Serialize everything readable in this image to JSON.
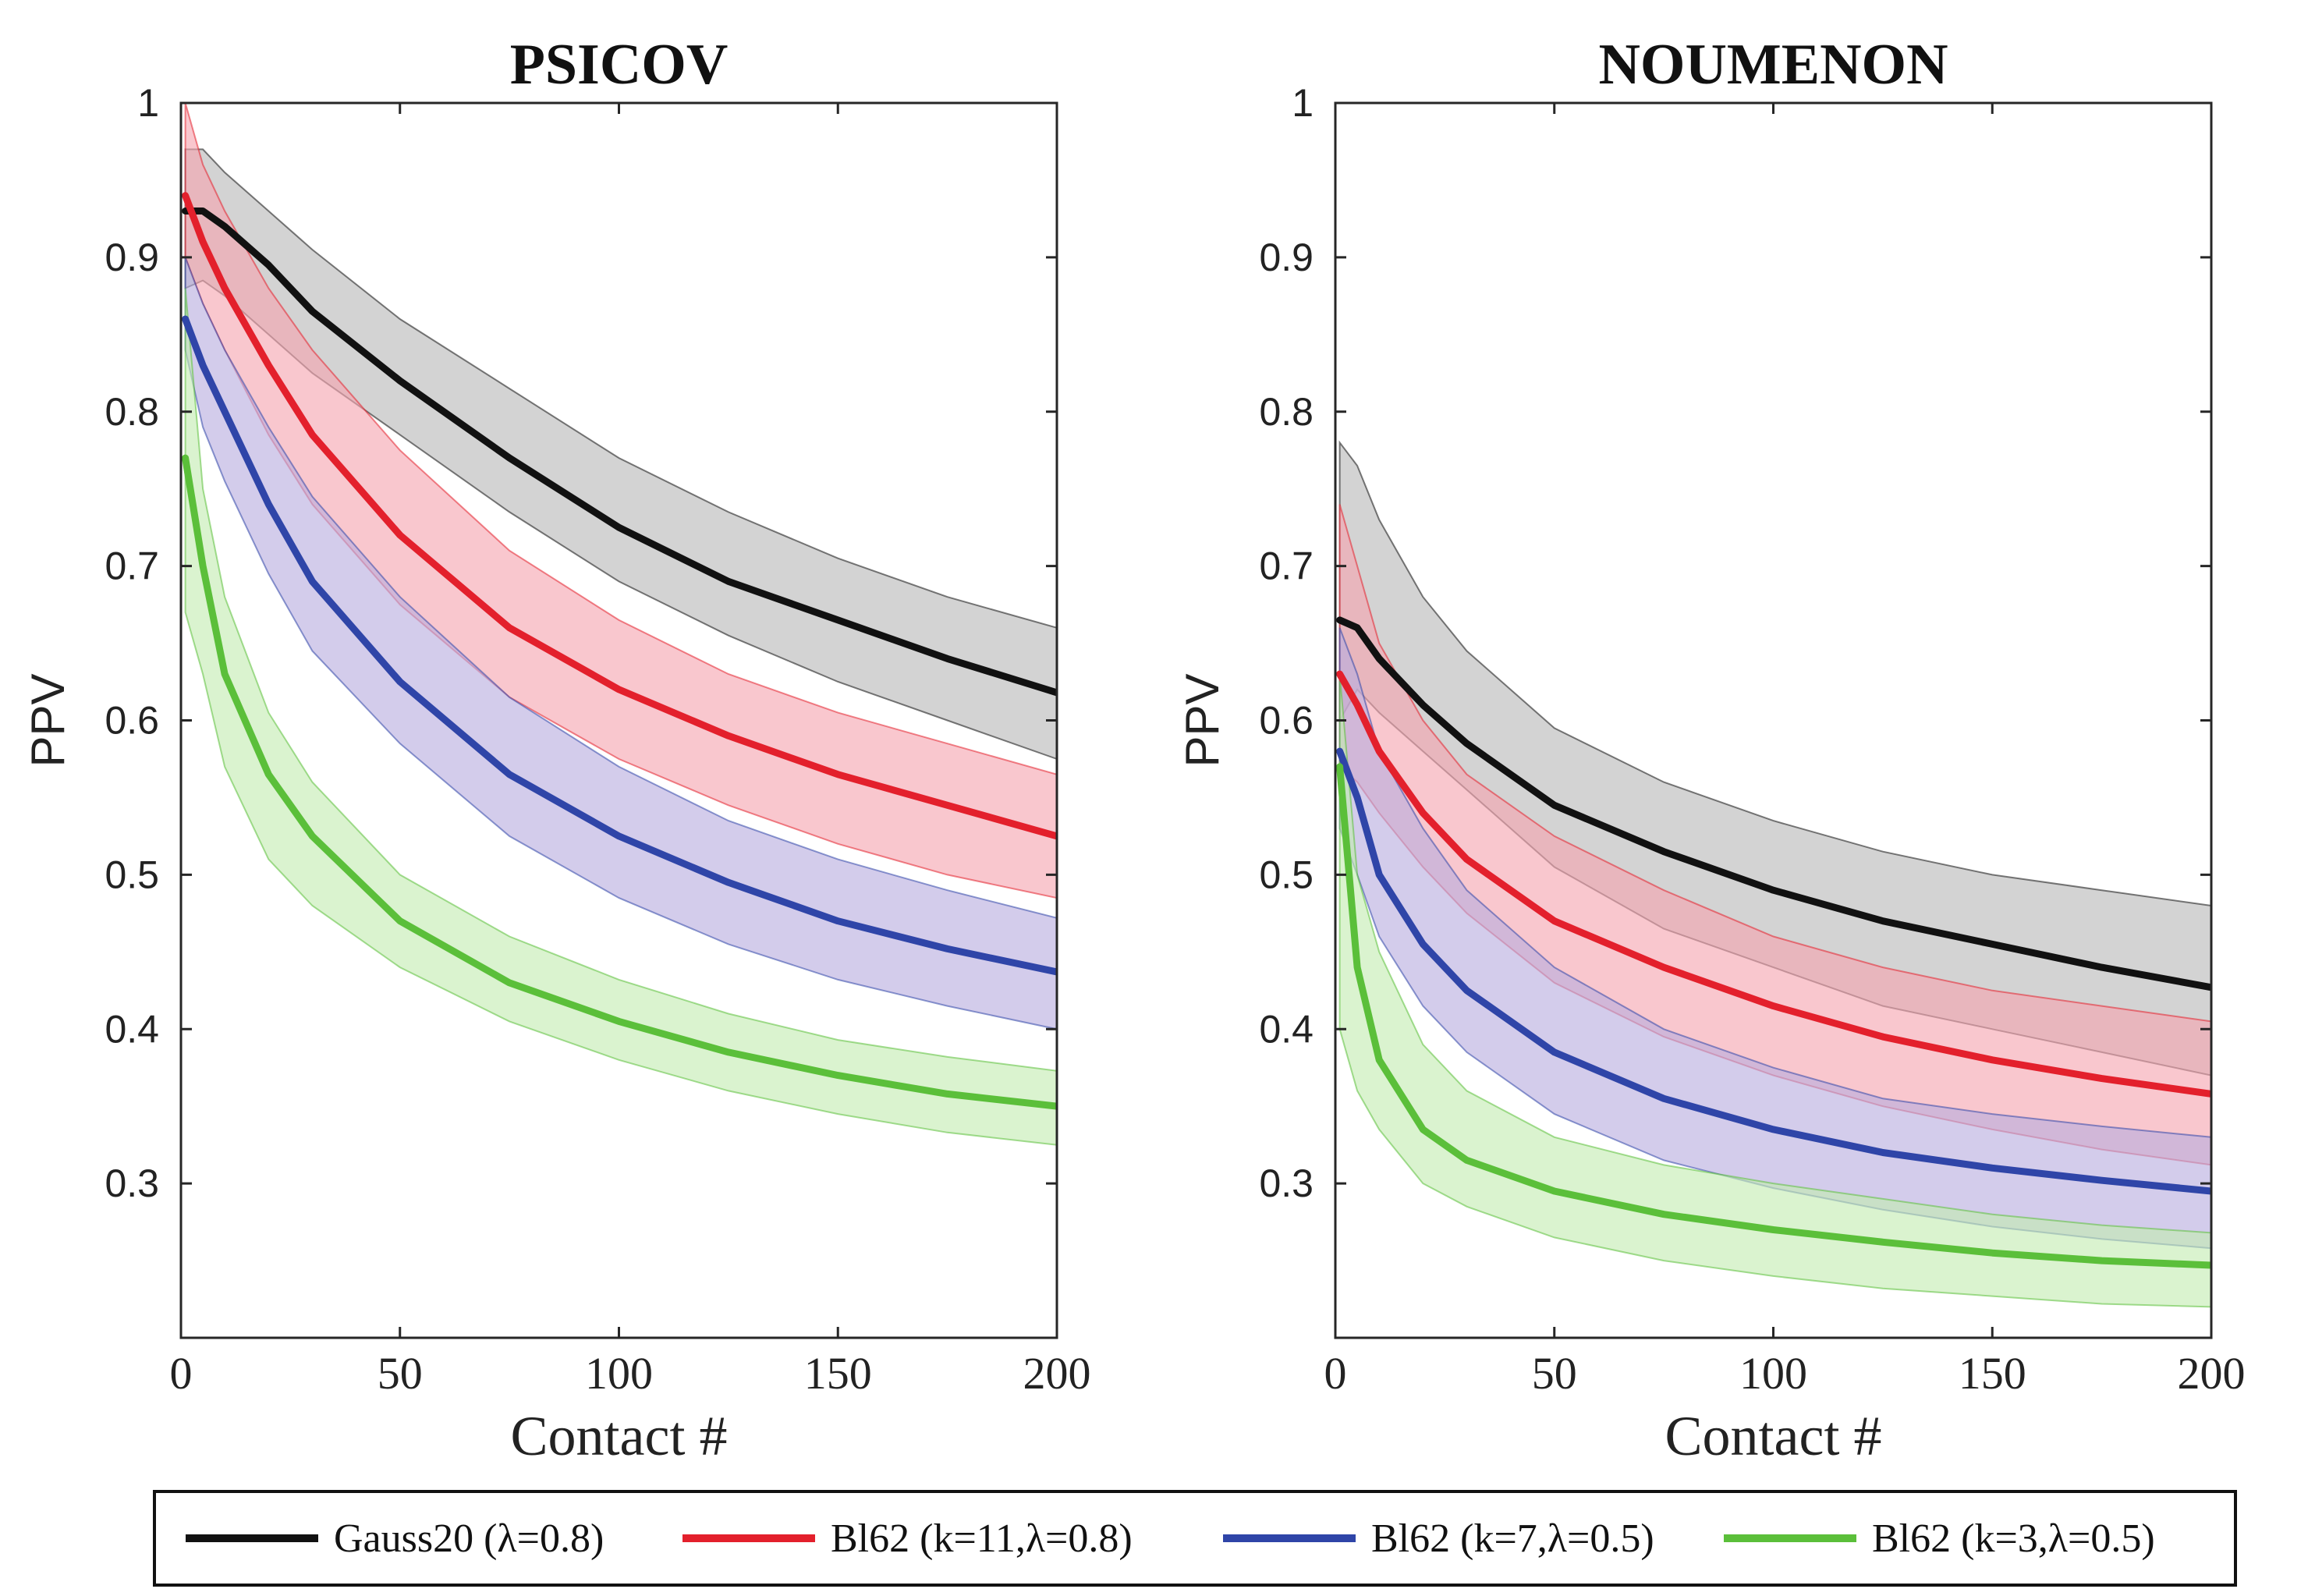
{
  "chart_data": [
    {
      "type": "line",
      "title": "PSICOV",
      "xlabel": "Contact #",
      "ylabel": "PPV",
      "xlim": [
        0,
        200
      ],
      "ylim": [
        0.2,
        1.0
      ],
      "xticks": [
        0,
        50,
        100,
        150,
        200
      ],
      "xtick_labels": [
        "0",
        "50",
        "100",
        "150",
        "200"
      ],
      "yticks": [
        0.3,
        0.4,
        0.5,
        0.6,
        0.7,
        0.8,
        0.9,
        1.0
      ],
      "ytick_labels": [
        "0.3",
        "0.4",
        "0.5",
        "0.6",
        "0.7",
        "0.8",
        "0.9",
        "1"
      ],
      "grid": false,
      "x": [
        1,
        5,
        10,
        20,
        30,
        50,
        75,
        100,
        125,
        150,
        175,
        200
      ],
      "series": [
        {
          "name": "Gauss20 (λ=0.8)",
          "color": "#111111",
          "band_color": "#b8b8b8",
          "values": [
            0.93,
            0.93,
            0.92,
            0.895,
            0.865,
            0.82,
            0.77,
            0.725,
            0.69,
            0.665,
            0.64,
            0.618
          ],
          "upper": [
            0.97,
            0.97,
            0.955,
            0.93,
            0.905,
            0.86,
            0.815,
            0.77,
            0.735,
            0.705,
            0.68,
            0.66
          ],
          "lower": [
            0.88,
            0.885,
            0.875,
            0.85,
            0.825,
            0.785,
            0.735,
            0.69,
            0.655,
            0.625,
            0.6,
            0.575
          ]
        },
        {
          "name": "Bl62 (k=11,λ=0.8)",
          "color": "#e3202c",
          "band_color": "#f6a4b0",
          "values": [
            0.94,
            0.91,
            0.88,
            0.83,
            0.785,
            0.72,
            0.66,
            0.62,
            0.59,
            0.565,
            0.545,
            0.525
          ],
          "upper": [
            1.0,
            0.96,
            0.93,
            0.88,
            0.84,
            0.775,
            0.71,
            0.665,
            0.63,
            0.605,
            0.585,
            0.565
          ],
          "lower": [
            0.9,
            0.87,
            0.84,
            0.785,
            0.74,
            0.675,
            0.615,
            0.575,
            0.545,
            0.52,
            0.5,
            0.485
          ]
        },
        {
          "name": "Bl62 (k=7,λ=0.5)",
          "color": "#2f45a8",
          "band_color": "#b8acdf",
          "values": [
            0.86,
            0.83,
            0.8,
            0.74,
            0.69,
            0.625,
            0.565,
            0.525,
            0.495,
            0.47,
            0.452,
            0.437
          ],
          "upper": [
            0.9,
            0.87,
            0.84,
            0.79,
            0.745,
            0.68,
            0.615,
            0.57,
            0.535,
            0.51,
            0.49,
            0.472
          ],
          "lower": [
            0.84,
            0.79,
            0.755,
            0.695,
            0.645,
            0.585,
            0.525,
            0.485,
            0.455,
            0.432,
            0.415,
            0.4
          ]
        },
        {
          "name": "Bl62 (k=3,λ=0.5)",
          "color": "#5bbf3a",
          "band_color": "#c4ebb2",
          "values": [
            0.77,
            0.7,
            0.63,
            0.565,
            0.525,
            0.47,
            0.43,
            0.405,
            0.385,
            0.37,
            0.358,
            0.35
          ],
          "upper": [
            0.88,
            0.75,
            0.68,
            0.605,
            0.56,
            0.5,
            0.46,
            0.432,
            0.41,
            0.393,
            0.382,
            0.373
          ],
          "lower": [
            0.67,
            0.63,
            0.57,
            0.51,
            0.48,
            0.44,
            0.405,
            0.38,
            0.36,
            0.345,
            0.333,
            0.325
          ]
        }
      ]
    },
    {
      "type": "line",
      "title": "NOUMENON",
      "xlabel": "Contact #",
      "ylabel": "PPV",
      "xlim": [
        0,
        200
      ],
      "ylim": [
        0.2,
        1.0
      ],
      "xticks": [
        0,
        50,
        100,
        150,
        200
      ],
      "xtick_labels": [
        "0",
        "50",
        "100",
        "150",
        "200"
      ],
      "yticks": [
        0.3,
        0.4,
        0.5,
        0.6,
        0.7,
        0.8,
        0.9,
        1.0
      ],
      "ytick_labels": [
        "0.3",
        "0.4",
        "0.5",
        "0.6",
        "0.7",
        "0.8",
        "0.9",
        "1"
      ],
      "grid": false,
      "x": [
        1,
        5,
        10,
        20,
        30,
        50,
        75,
        100,
        125,
        150,
        175,
        200
      ],
      "series": [
        {
          "name": "Gauss20 (λ=0.8)",
          "color": "#111111",
          "band_color": "#b8b8b8",
          "values": [
            0.665,
            0.66,
            0.64,
            0.61,
            0.585,
            0.545,
            0.515,
            0.49,
            0.47,
            0.455,
            0.44,
            0.427
          ],
          "upper": [
            0.78,
            0.765,
            0.73,
            0.68,
            0.645,
            0.595,
            0.56,
            0.535,
            0.515,
            0.5,
            0.49,
            0.48
          ],
          "lower": [
            0.6,
            0.62,
            0.605,
            0.58,
            0.555,
            0.505,
            0.465,
            0.44,
            0.415,
            0.4,
            0.385,
            0.37
          ]
        },
        {
          "name": "Bl62 (k=11,λ=0.8)",
          "color": "#e3202c",
          "band_color": "#f6a4b0",
          "values": [
            0.63,
            0.61,
            0.58,
            0.54,
            0.51,
            0.47,
            0.44,
            0.415,
            0.395,
            0.38,
            0.368,
            0.358
          ],
          "upper": [
            0.74,
            0.7,
            0.65,
            0.6,
            0.565,
            0.525,
            0.49,
            0.46,
            0.44,
            0.425,
            0.415,
            0.405
          ],
          "lower": [
            0.57,
            0.56,
            0.54,
            0.505,
            0.475,
            0.43,
            0.395,
            0.37,
            0.35,
            0.335,
            0.322,
            0.312
          ]
        },
        {
          "name": "Bl62 (k=7,λ=0.5)",
          "color": "#2f45a8",
          "band_color": "#b8acdf",
          "values": [
            0.58,
            0.55,
            0.5,
            0.455,
            0.425,
            0.385,
            0.355,
            0.335,
            0.32,
            0.31,
            0.302,
            0.295
          ],
          "upper": [
            0.66,
            0.63,
            0.58,
            0.53,
            0.49,
            0.44,
            0.4,
            0.375,
            0.355,
            0.345,
            0.337,
            0.33
          ],
          "lower": [
            0.53,
            0.5,
            0.46,
            0.415,
            0.385,
            0.345,
            0.315,
            0.297,
            0.283,
            0.272,
            0.264,
            0.258
          ]
        },
        {
          "name": "Bl62 (k=3,λ=0.5)",
          "color": "#5bbf3a",
          "band_color": "#c4ebb2",
          "values": [
            0.57,
            0.44,
            0.38,
            0.335,
            0.315,
            0.295,
            0.28,
            0.27,
            0.262,
            0.255,
            0.25,
            0.247
          ],
          "upper": [
            0.63,
            0.5,
            0.45,
            0.39,
            0.36,
            0.33,
            0.312,
            0.3,
            0.29,
            0.28,
            0.273,
            0.268
          ],
          "lower": [
            0.4,
            0.36,
            0.335,
            0.3,
            0.285,
            0.265,
            0.25,
            0.24,
            0.232,
            0.227,
            0.222,
            0.22
          ]
        }
      ]
    }
  ],
  "legend": {
    "placement": "bottom",
    "entries": [
      {
        "label": "Gauss20 (λ=0.8)",
        "color": "#111111"
      },
      {
        "label": "Bl62 (k=11,λ=0.8)",
        "color": "#e3202c"
      },
      {
        "label": "Bl62 (k=7,λ=0.5)",
        "color": "#2f45a8"
      },
      {
        "label": "Bl62 (k=3,λ=0.5)",
        "color": "#5bbf3a"
      }
    ]
  }
}
